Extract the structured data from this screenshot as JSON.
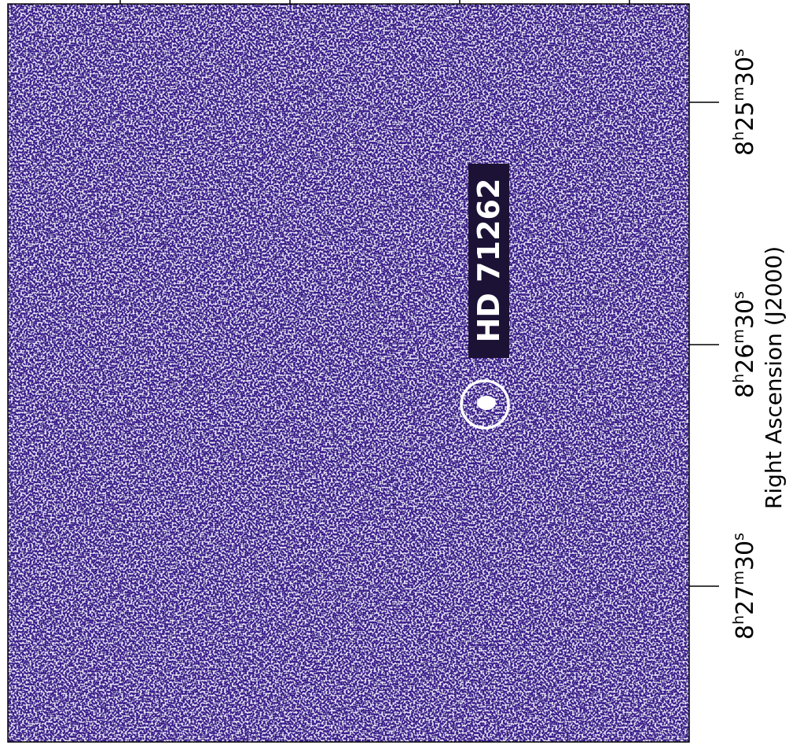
{
  "target": {
    "label": "HD 71262"
  },
  "axis": {
    "label": "Right Ascension (J2000)",
    "ticks": [
      {
        "parts": [
          "8",
          "h",
          "25",
          "m",
          "30",
          "s"
        ]
      },
      {
        "parts": [
          "8",
          "h",
          "26",
          "m",
          "30",
          "s"
        ]
      },
      {
        "parts": [
          "8",
          "h",
          "27",
          "m",
          "30",
          "s"
        ]
      }
    ]
  }
}
